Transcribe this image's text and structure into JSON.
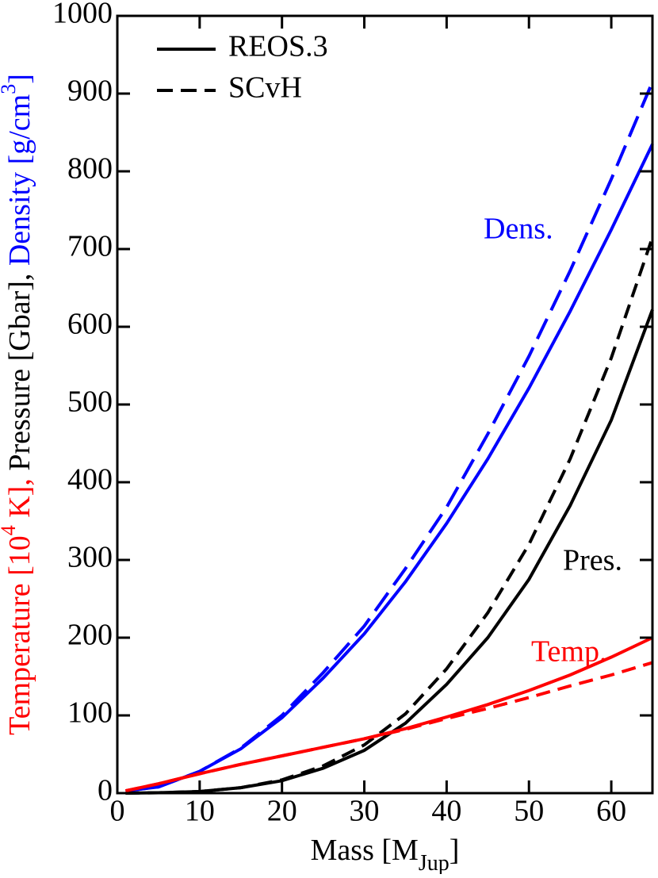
{
  "chart_data": {
    "type": "line",
    "xlabel": [
      {
        "text": "Mass [M"
      },
      {
        "text": "Jup",
        "sub": true
      },
      {
        "text": "]"
      }
    ],
    "ylabel": [
      {
        "text": "Temperature [10",
        "color": "#ff0000"
      },
      {
        "text": "4",
        "color": "#ff0000",
        "sup": true
      },
      {
        "text": " K], ",
        "color": "#ff0000"
      },
      {
        "text": "Pressure [Gbar], ",
        "color": "#000000"
      },
      {
        "text": "Density [g/cm",
        "color": "#0000ff"
      },
      {
        "text": "3",
        "color": "#0000ff",
        "sup": true
      },
      {
        "text": "]",
        "color": "#0000ff"
      }
    ],
    "x": [
      1,
      5,
      10,
      15,
      20,
      25,
      30,
      35,
      40,
      45,
      50,
      55,
      60,
      65
    ],
    "xlim": [
      0,
      65
    ],
    "xticks": [
      0,
      10,
      20,
      30,
      40,
      50,
      60
    ],
    "ylim": [
      0,
      1000
    ],
    "yticks": [
      0,
      100,
      200,
      300,
      400,
      500,
      600,
      700,
      800,
      900,
      1000
    ],
    "legend_position": "upper left",
    "legend": [
      {
        "name": "REOS.3",
        "dashed": false
      },
      {
        "name": "SCvH",
        "dashed": true
      }
    ],
    "series": [
      {
        "name": "Dens.",
        "color": "#0000ff",
        "curves": [
          {
            "eos": 0,
            "values": [
              3,
              8,
              28,
              57,
              97,
              148,
              205,
              272,
              347,
              430,
              521,
              620,
              725,
              835
            ]
          },
          {
            "eos": 1,
            "values": [
              3,
              8,
              28,
              58,
              100,
              155,
              215,
              289,
              368,
              462,
              562,
              672,
              790,
              915
            ]
          }
        ]
      },
      {
        "name": "Pres.",
        "color": "#000000",
        "curves": [
          {
            "eos": 0,
            "values": [
              0,
              0.5,
              2,
              7,
              16,
              32,
              55,
              90,
              140,
              200,
              275,
              370,
              480,
              622
            ]
          },
          {
            "eos": 1,
            "values": [
              0,
              0.5,
              2,
              7,
              17,
              35,
              62,
              102,
              160,
              232,
              320,
              430,
              560,
              715
            ]
          }
        ]
      },
      {
        "name": "Temp.",
        "color": "#ff0000",
        "curves": [
          {
            "eos": 0,
            "values": [
              3,
              12,
              25,
              37,
              48,
              59,
              70,
              83,
              98,
              114,
              132,
              152,
              175,
              200
            ]
          },
          {
            "eos": 1,
            "values": [
              3,
              12,
              25,
              37,
              48,
              59,
              70,
              82,
              96,
              109,
              123,
              138,
              152,
              168
            ]
          }
        ]
      }
    ]
  }
}
